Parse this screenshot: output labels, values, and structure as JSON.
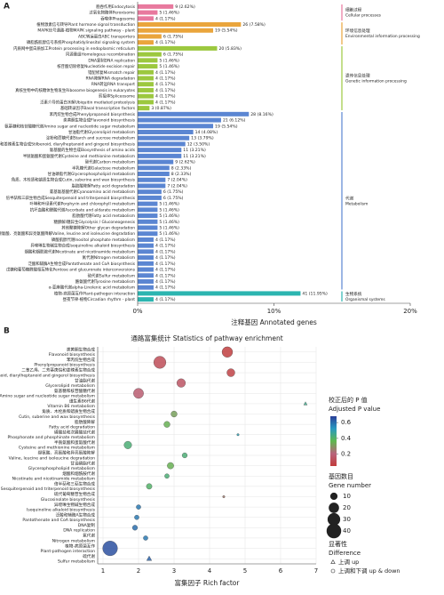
{
  "chart_data": [
    {
      "type": "bar",
      "orientation": "horizontal",
      "panel": "A",
      "xlabel": "注释基因 Annotated genes",
      "xlim": [
        0,
        20
      ],
      "xticks": [
        {
          "value": 0,
          "label": "0%"
        },
        {
          "value": 10,
          "label": "10%"
        },
        {
          "value": 20,
          "label": "20%"
        }
      ],
      "series": [
        {
          "name": "细胞过程",
          "name_en": "Cellular processes",
          "color": "#e8799e",
          "categories": [
            "胞吞作用Endocytosis",
            "过氧化物酶体Peroxisome",
            "吞噬体Phagosome"
          ],
          "values": [
            2.62,
            1.46,
            1.17
          ],
          "value_labels": [
            "9 (2.62%)",
            "5 (1.46%)",
            "4 (1.17%)"
          ]
        },
        {
          "name": "环境信息处理",
          "name_en": "Environmental information processing",
          "color": "#eaa53c",
          "categories": [
            "植物激素信号转导Plant hormone signal transduction",
            "MAPK信号通路-植物MAPK signaling pathway - plant",
            "ABC转运蛋白ABC transporters",
            "磷脂酰肌醇信号系统Phosphatidylinositol signaling system"
          ],
          "values": [
            7.58,
            5.54,
            1.75,
            1.17
          ],
          "value_labels": [
            "26 (7.58%)",
            "19 (5.54%)",
            "6 (1.75%)",
            "4 (1.17%)"
          ]
        },
        {
          "name": "遗传信息处理",
          "name_en": "Genetic information processing",
          "color": "#9cc83f",
          "categories": [
            "内质网中蛋白质加工Protein processing in endoplasmic reticulum",
            "同源重组Homologous recombination",
            "DNA复制DNA replication",
            "核苷酸切除修复Nucleotide excision repair",
            "错配修复Mismatch repair",
            "RNA降解RNA degradation",
            "RNA转运RNA transport",
            "真核生物中的核糖体生物发生Ribosome biogenesis in eukaryotes",
            "剪接体Spliceosome",
            "泛素介导的蛋白水解Ubiquitin mediated proteolysis",
            "基础转录因子Basal transcription factors"
          ],
          "values": [
            5.83,
            1.75,
            1.46,
            1.46,
            1.17,
            1.17,
            1.17,
            1.17,
            1.17,
            1.17,
            0.87
          ],
          "value_labels": [
            "20 (5.83%)",
            "6 (1.75%)",
            "5 (1.46%)",
            "5 (1.46%)",
            "4 (1.17%)",
            "4 (1.17%)",
            "4 (1.17%)",
            "4 (1.17%)",
            "4 (1.17%)",
            "4 (1.17%)",
            "3 (0.87%)"
          ]
        },
        {
          "name": "代谢",
          "name_en": "Metabolism",
          "color": "#5b86d2",
          "categories": [
            "苯丙烷生物合成Phenylpropanoid biosynthesis",
            "类黄酮生物合成Flavonoid biosynthesis",
            "氨基糖和核苷酸糖代谢Amino sugar and nucleotide sugar metabolism",
            "甘油脂代谢Glycerolipid metabolism",
            "淀粉和蔗糖代谢Starch and sucrose metabolism",
            "二苯乙烯、二芳基庚烷和姜辣素生物合成Stilbenoid, diarylheptanoid and gingerol biosynthesis",
            "氨基酸的生物合成Biosynthesis of amino acids",
            "半胱氨酸和蛋氨酸代谢Cysteine and methionine metabolism",
            "碳代谢Carbon metabolism",
            "半乳糖代谢Galactose metabolism",
            "甘油磷脂代谢Glycerophospholipid metabolism",
            "角质、木栓质和蜡质生物合成Cutin, suberine and wax biosynthesis",
            "脂肪酸降解Fatty acid degradation",
            "氰基氨基酸代谢Cyanoamino acid metabolism",
            "倍半萜和三萜生物合成Sesquiterpenoid and triterpenoid biosynthesis",
            "卟啉和叶绿素代谢Porphyrin and chlorophyll metabolism",
            "抗坏血酸和醛酸代谢Ascorbate and aldarate metabolism",
            "脂肪酸代谢Fatty acid metabolism",
            "糖酵解/糖异生Glycolysis / Gluconeogenesis",
            "其他聚糖降解Other glycan degradation",
            "缬氨酸、亮氨酸和异亮氨酸降解Valine, leucine and isoleucine degradation",
            "磷酸肌醇代谢Inositol phosphate metabolism",
            "异喹啉生物碱生物合成Isoquinoline alkaloid biosynthesis",
            "烟酸和烟酰胺代谢Nicotinate and nicotinamide metabolism",
            "氮代谢Nitrogen metabolism",
            "泛酸和辅酶A生物合成Pantothenate and CoA biosynthesis",
            "戊糖和葡萄糖醛酸相互转化Pentose and glucuronate interconversions",
            "硫代谢Sulfur metabolism",
            "酪氨酸代谢Tyrosine metabolism",
            "α-亚麻酸代谢alpha-Linolenic acid metabolism"
          ],
          "values": [
            8.16,
            6.12,
            5.54,
            4.08,
            3.79,
            3.5,
            3.21,
            3.21,
            2.62,
            2.33,
            2.33,
            2.04,
            2.04,
            1.75,
            1.75,
            1.46,
            1.46,
            1.46,
            1.46,
            1.46,
            1.46,
            1.17,
            1.17,
            1.17,
            1.17,
            1.17,
            1.17,
            1.17,
            1.17,
            1.17
          ],
          "value_labels": [
            "28 (8.16%)",
            "21 (6.12%)",
            "19 (5.54%)",
            "14 (4.08%)",
            "13 (3.79%)",
            "12 (3.50%)",
            "11 (3.21%)",
            "11 (3.21%)",
            "9 (2.62%)",
            "8 (2.33%)",
            "8 (2.33%)",
            "7 (2.04%)",
            "7 (2.04%)",
            "6 (1.75%)",
            "6 (1.75%)",
            "5 (1.46%)",
            "5 (1.46%)",
            "5 (1.46%)",
            "5 (1.46%)",
            "5 (1.46%)",
            "5 (1.46%)",
            "4 (1.17%)",
            "4 (1.17%)",
            "4 (1.17%)",
            "4 (1.17%)",
            "4 (1.17%)",
            "4 (1.17%)",
            "4 (1.17%)",
            "4 (1.17%)",
            "4 (1.17%)"
          ]
        },
        {
          "name": "生物系统",
          "name_en": "Organismal systems",
          "color": "#2bb5b0",
          "categories": [
            "植物-病原菌互作Plant-pathogen interaction",
            "昼夜节律-植物Circadian rhythm - plant"
          ],
          "values": [
            11.95,
            1.17
          ],
          "value_labels": [
            "41 (11.95%)",
            "4 (1.17%)"
          ]
        }
      ]
    },
    {
      "type": "scatter",
      "panel": "B",
      "title": "通路富集统计 Statistics of pathway enrichment",
      "xlabel": "富集因子 Rich factor",
      "xlim": [
        0.85,
        7
      ],
      "xticks": [
        1,
        2,
        3,
        4,
        5,
        6,
        7
      ],
      "grid": true,
      "categories": [
        "类黄酮生物合成",
        "苯丙烷生物合成",
        "二苯乙烯、二芳基庚烷和姜辣素生物合成",
        "甘油脂代谢",
        "氨基糖和核苷酸糖代谢",
        "维生素B6代谢",
        "角质、木栓质和蜡质生物合成",
        "脂肪酸降解",
        "磷酸盐和次膦酸盐代谢",
        "半胱氨酸和蛋氨酸代谢",
        "缬氨酸、亮氨酸和异亮氨酸降解",
        "甘油磷脂代谢",
        "烟酸和烟酰胺代谢",
        "倍半萜和三萜生物合成",
        "硫代葡萄糖苷生物合成",
        "异喹啉生物碱生物合成",
        "泛酸和辅酶A生物合成",
        "DNA复制",
        "氮代谢",
        "植物-病原菌互作",
        "硫代谢"
      ],
      "categories_en": [
        "Flavonoid biosynthesis",
        "Phenylpropanoid biosynthesis",
        "Stilbenoid, diarylheptanoid and gingerol biosynthesis",
        "Glycerolipid metabolism",
        "Amino sugar and nucleotide sugar metabolism",
        "Vitamin B6 metabolism",
        "Cutin, suberine and wax biosynthesis",
        "Fatty acid degradation",
        "Phosphonate and phosphinate metabolism",
        "Cysteine and methionine metabolism",
        "Valine, leucine and isoleucine degradation",
        "Glycerophospholipid metabolism",
        "Nicotinate and nicotinamide metabolism",
        "Sesquiterpenoid and triterpenoid biosynthesis",
        "Glucosinolate biosynthesis",
        "Isoquinoline alkaloid biosynthesis",
        "Pantothenate and CoA biosynthesis",
        "DNA replication",
        "Nitrogen metabolism",
        "Plant-pathogen interaction",
        "Sulfur metabolism"
      ],
      "series": [
        {
          "name": "上调 up",
          "marker": "triangle",
          "values": [
            null,
            null,
            null,
            null,
            null,
            6.7,
            null,
            null,
            null,
            null,
            null,
            null,
            null,
            null,
            null,
            null,
            null,
            null,
            null,
            null,
            2.3
          ],
          "sizes": [
            null,
            null,
            null,
            null,
            null,
            2,
            null,
            null,
            null,
            null,
            null,
            null,
            null,
            null,
            null,
            null,
            null,
            null,
            null,
            null,
            4
          ],
          "padj": [
            null,
            null,
            null,
            null,
            null,
            0.45,
            null,
            null,
            null,
            null,
            null,
            null,
            null,
            null,
            null,
            null,
            null,
            null,
            null,
            null,
            0.62
          ]
        },
        {
          "name": "上调和下调 up & down",
          "marker": "circle",
          "values": [
            4.5,
            2.6,
            4.6,
            3.2,
            2.0,
            null,
            3.0,
            2.8,
            4.8,
            1.7,
            3.3,
            2.9,
            2.8,
            2.3,
            4.4,
            2.0,
            1.95,
            1.9,
            2.2,
            1.2,
            null
          ],
          "sizes": [
            21,
            28,
            12,
            14,
            19,
            null,
            7,
            7,
            1,
            11,
            5,
            8,
            4,
            6,
            1,
            4,
            4,
            5,
            4,
            41,
            null
          ],
          "padj": [
            0.06,
            0.12,
            0.08,
            0.15,
            0.18,
            null,
            0.32,
            0.35,
            0.5,
            0.42,
            0.42,
            0.35,
            0.42,
            0.4,
            0.25,
            0.58,
            0.58,
            0.6,
            0.58,
            0.65,
            null
          ]
        }
      ],
      "color_label": [
        "校正后的 P 值",
        "Adjusted P value"
      ],
      "clim": [
        0.05,
        0.68
      ],
      "cticks": [
        0.2,
        0.4,
        0.6
      ],
      "colormap": [
        "#c23b3b",
        "#b8647c",
        "#5fb84f",
        "#2a9ac0",
        "#2b3f99"
      ],
      "size_label": [
        "基因数目",
        "Gene number"
      ],
      "size_ticks": [
        10,
        20,
        30,
        40
      ],
      "shape_label": [
        "显著性",
        "Difference"
      ]
    }
  ]
}
